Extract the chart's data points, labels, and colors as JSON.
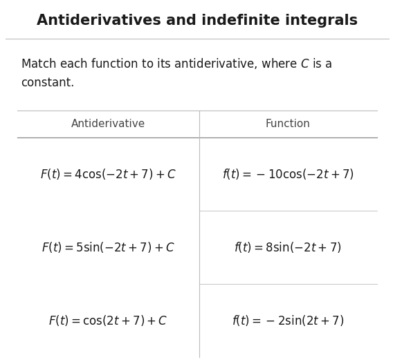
{
  "title": "Antiderivatives and indefinite integrals",
  "subtitle": "Match each function to its antiderivative, where $C$ is a\nconstant.",
  "col_headers": [
    "Antiderivative",
    "Function"
  ],
  "antiderivatives": [
    "$F(t) = 4\\cos(-2t + 7) + C$",
    "$F(t) = 5\\sin(-2t + 7) + C$",
    "$F(t) = \\cos(2t + 7) + C$"
  ],
  "functions": [
    "$f(t) = -10\\cos(-2t + 7)$",
    "$f(t) = 8\\sin(-2t + 7)$",
    "$f(t) = -2\\sin(2t + 7)$"
  ],
  "bg_color": "#ffffff",
  "text_color": "#1a1a1a",
  "header_color": "#444444",
  "line_color": "#bbbbbb",
  "header_line_color": "#888888",
  "title_fontsize": 15,
  "header_fontsize": 11,
  "body_fontsize": 12,
  "subtitle_fontsize": 12
}
